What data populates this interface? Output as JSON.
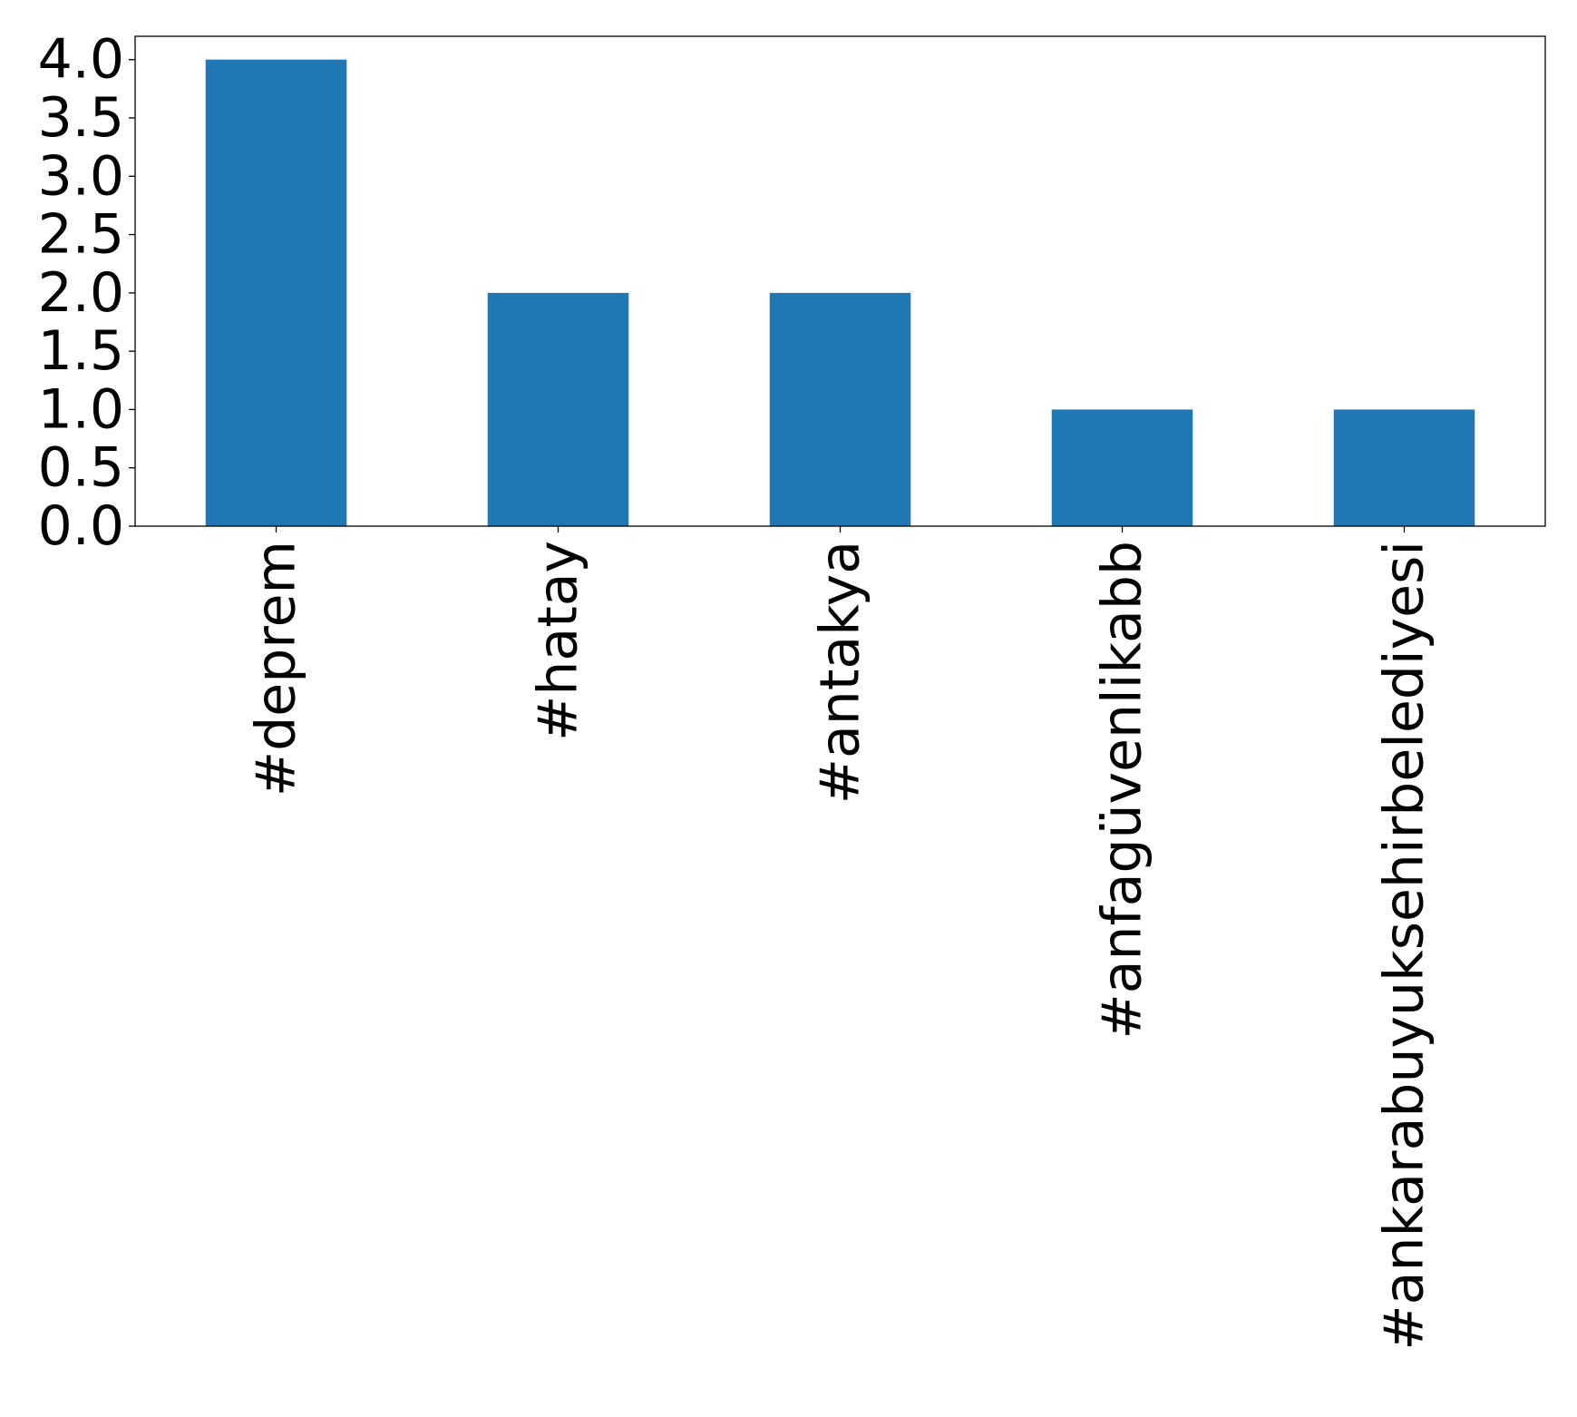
{
  "chart_data": {
    "type": "bar",
    "title": "",
    "xlabel": "",
    "ylabel": "",
    "categories": [
      "#deprem",
      "#hatay",
      "#antakya",
      "#anfagüvenlikabb",
      "#ankarabuyuksehirbelediyesi"
    ],
    "values": [
      4,
      2,
      2,
      1,
      1
    ],
    "ylim": [
      0,
      4.2
    ],
    "yticks": [
      0.0,
      0.5,
      1.0,
      1.5,
      2.0,
      2.5,
      3.0,
      3.5,
      4.0
    ],
    "ytick_labels": [
      "0.0",
      "0.5",
      "1.0",
      "1.5",
      "2.0",
      "2.5",
      "3.0",
      "3.5",
      "4.0"
    ],
    "bar_color": "#1f77b4",
    "grid": false,
    "legend": "none"
  }
}
